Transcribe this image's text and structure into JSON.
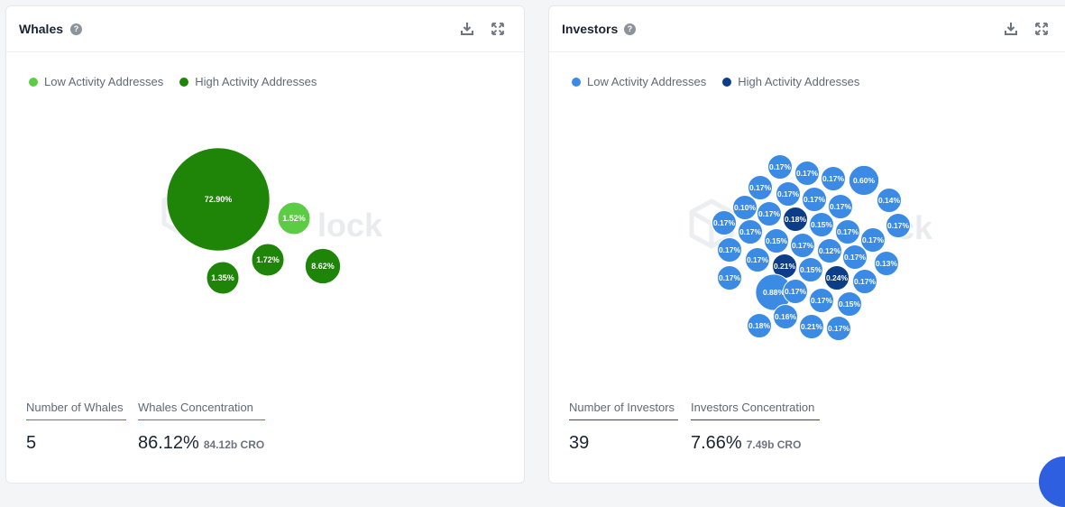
{
  "whales": {
    "title": "Whales",
    "legend": {
      "low": "Low Activity Addresses",
      "high": "High Activity Addresses"
    },
    "colors": {
      "low": "#5ccc45",
      "high": "#1f8508"
    },
    "stats": {
      "count_label": "Number of Whales",
      "count_value": "5",
      "concentration_label": "Whales Concentration",
      "concentration_value": "86.12%",
      "concentration_sub": "84.12b CRO",
      "underline_color": "#3f9a24"
    },
    "chart_data": {
      "type": "bubble",
      "values": [
        {
          "label": "72.90%",
          "pct": 72.9,
          "group": "high"
        },
        {
          "label": "1.52%",
          "pct": 1.52,
          "group": "low"
        },
        {
          "label": "1.35%",
          "pct": 1.35,
          "group": "high"
        },
        {
          "label": "1.72%",
          "pct": 1.72,
          "group": "high"
        },
        {
          "label": "8.62%",
          "pct": 8.62,
          "group": "high"
        }
      ]
    }
  },
  "investors": {
    "title": "Investors",
    "legend": {
      "low": "Low Activity Addresses",
      "high": "High Activity Addresses"
    },
    "colors": {
      "low": "#3b8be4",
      "high": "#0b3e86"
    },
    "stats": {
      "count_label": "Number of Investors",
      "count_value": "39",
      "concentration_label": "Investors Concentration",
      "concentration_value": "7.66%",
      "concentration_sub": "7.49b CRO",
      "underline_color": "#1d4d7e"
    },
    "chart_data": {
      "type": "bubble",
      "values": [
        {
          "label": "0.17%",
          "pct": 0.17,
          "group": "low"
        },
        {
          "label": "0.17%",
          "pct": 0.17,
          "group": "low"
        },
        {
          "label": "0.17%",
          "pct": 0.17,
          "group": "low"
        },
        {
          "label": "0.60%",
          "pct": 0.6,
          "group": "low"
        },
        {
          "label": "0.17%",
          "pct": 0.17,
          "group": "low"
        },
        {
          "label": "0.17%",
          "pct": 0.17,
          "group": "low"
        },
        {
          "label": "0.17%",
          "pct": 0.17,
          "group": "low"
        },
        {
          "label": "0.17%",
          "pct": 0.17,
          "group": "low"
        },
        {
          "label": "0.14%",
          "pct": 0.14,
          "group": "low"
        },
        {
          "label": "0.10%",
          "pct": 0.1,
          "group": "low"
        },
        {
          "label": "0.17%",
          "pct": 0.17,
          "group": "low"
        },
        {
          "label": "0.18%",
          "pct": 0.18,
          "group": "high"
        },
        {
          "label": "0.17%",
          "pct": 0.17,
          "group": "low"
        },
        {
          "label": "0.17%",
          "pct": 0.17,
          "group": "low"
        },
        {
          "label": "0.15%",
          "pct": 0.15,
          "group": "low"
        },
        {
          "label": "0.17%",
          "pct": 0.17,
          "group": "low"
        },
        {
          "label": "0.17%",
          "pct": 0.17,
          "group": "low"
        },
        {
          "label": "0.15%",
          "pct": 0.15,
          "group": "low"
        },
        {
          "label": "0.17%",
          "pct": 0.17,
          "group": "low"
        },
        {
          "label": "0.17%",
          "pct": 0.17,
          "group": "low"
        },
        {
          "label": "0.12%",
          "pct": 0.12,
          "group": "low"
        },
        {
          "label": "0.17%",
          "pct": 0.17,
          "group": "low"
        },
        {
          "label": "0.17%",
          "pct": 0.17,
          "group": "low"
        },
        {
          "label": "0.17%",
          "pct": 0.17,
          "group": "low"
        },
        {
          "label": "0.21%",
          "pct": 0.21,
          "group": "high"
        },
        {
          "label": "0.15%",
          "pct": 0.15,
          "group": "low"
        },
        {
          "label": "0.24%",
          "pct": 0.24,
          "group": "high"
        },
        {
          "label": "0.13%",
          "pct": 0.13,
          "group": "low"
        },
        {
          "label": "0.17%",
          "pct": 0.17,
          "group": "low"
        },
        {
          "label": "0.17%",
          "pct": 0.17,
          "group": "low"
        },
        {
          "label": "0.88%",
          "pct": 0.88,
          "group": "low"
        },
        {
          "label": "0.17%",
          "pct": 0.17,
          "group": "low"
        },
        {
          "label": "0.17%",
          "pct": 0.17,
          "group": "low"
        },
        {
          "label": "0.17%",
          "pct": 0.17,
          "group": "low"
        },
        {
          "label": "0.15%",
          "pct": 0.15,
          "group": "low"
        },
        {
          "label": "0.16%",
          "pct": 0.16,
          "group": "low"
        },
        {
          "label": "0.18%",
          "pct": 0.18,
          "group": "low"
        },
        {
          "label": "0.21%",
          "pct": 0.21,
          "group": "low"
        },
        {
          "label": "0.17%",
          "pct": 0.17,
          "group": "low"
        }
      ]
    }
  }
}
